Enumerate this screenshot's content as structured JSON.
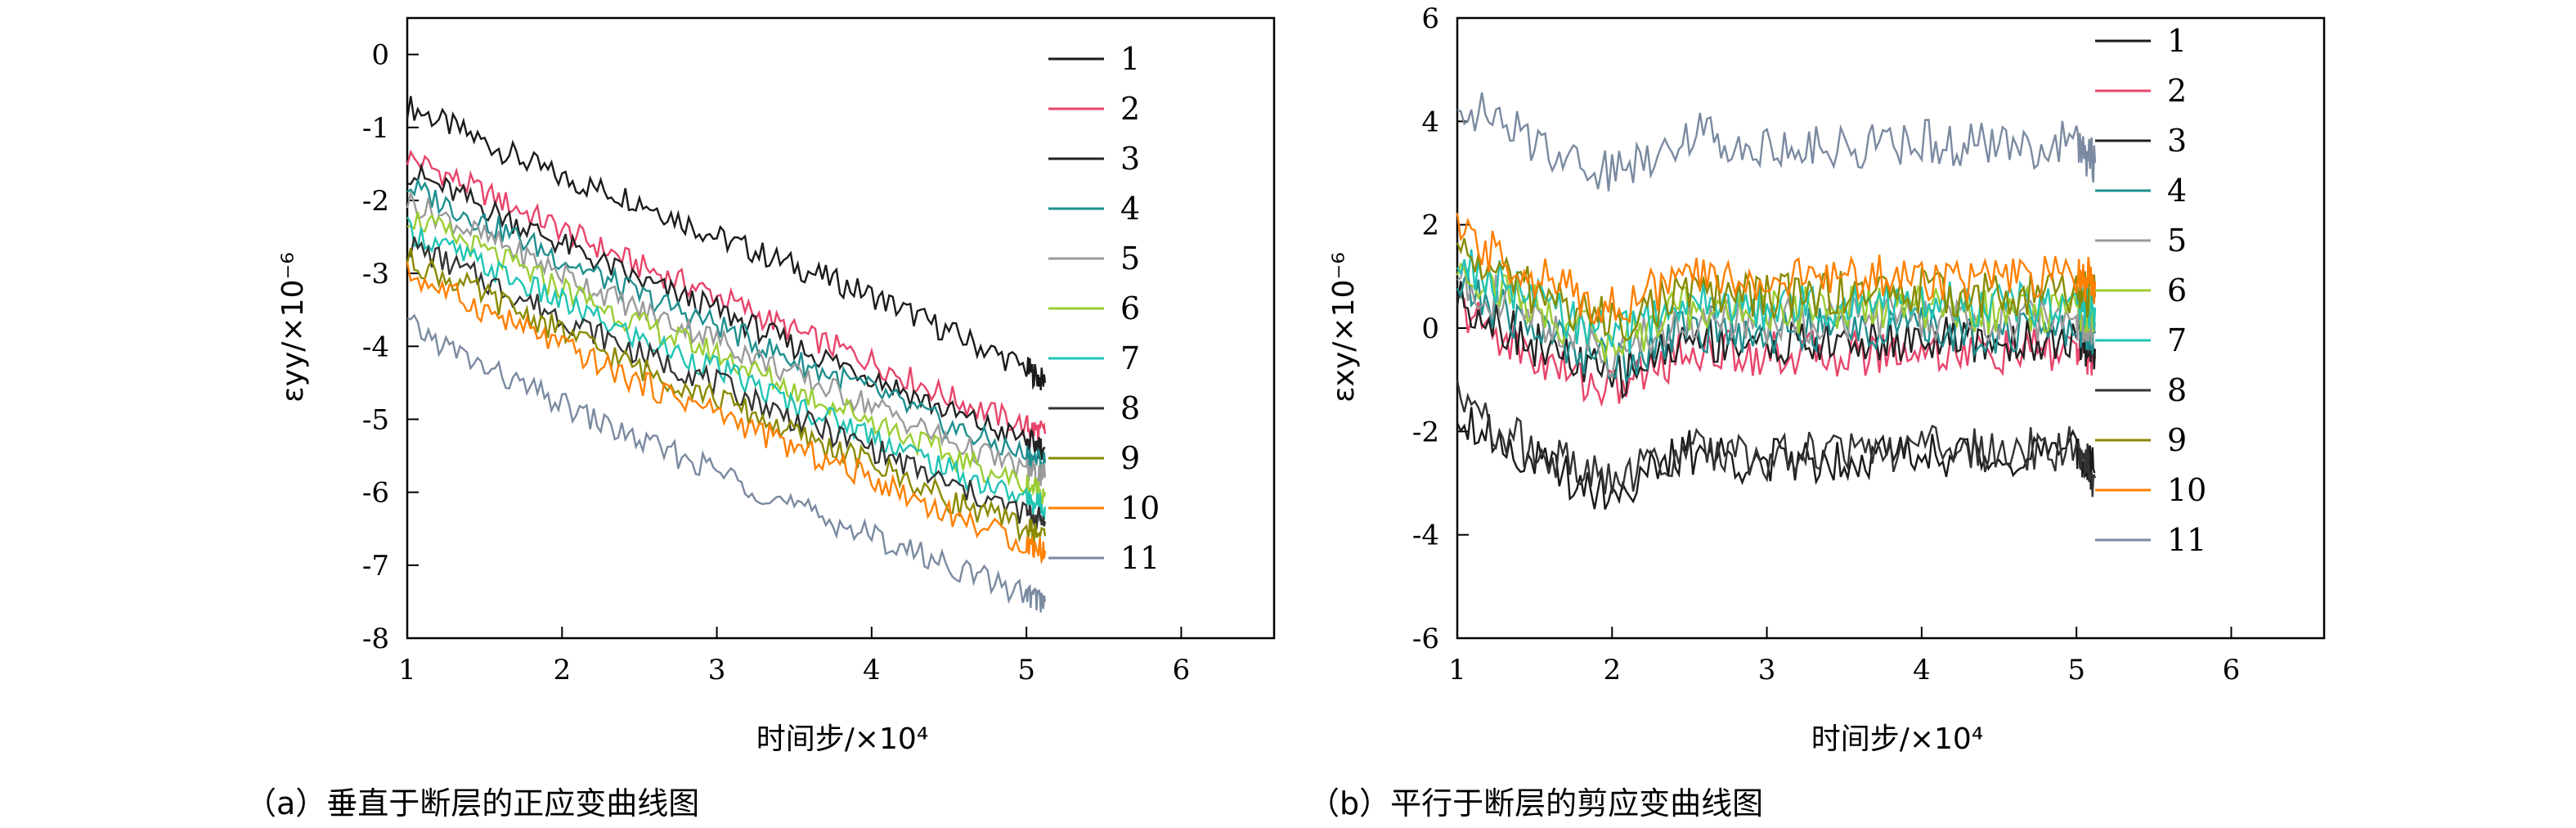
{
  "colors": {
    "axis": "#000000",
    "series": [
      "#1a1a1a",
      "#e8446a",
      "#222222",
      "#1f8f8f",
      "#9a9a9a",
      "#9acd32",
      "#20c4b4",
      "#333333",
      "#8a8a00",
      "#ff7f00",
      "#7a8aa0"
    ]
  },
  "chart_data": [
    {
      "type": "line",
      "panel": "a",
      "caption": "（a）垂直于断层的正应变曲线图",
      "xlabel": "时间步/×10⁴",
      "ylabel": "εyy/×10⁻⁶",
      "xlim": [
        1,
        6.6
      ],
      "ylim": [
        -8,
        0.5
      ],
      "xticks": [
        "1",
        "2",
        "3",
        "4",
        "5",
        "6"
      ],
      "yticks": [
        "0",
        "-1",
        "-2",
        "-3",
        "-4",
        "-5",
        "-6",
        "-7",
        "-8"
      ],
      "legend_position": "top-right",
      "x": [
        1.0,
        1.5,
        2.0,
        2.5,
        3.0,
        3.5,
        4.0,
        4.5,
        5.0,
        5.12
      ],
      "series": [
        {
          "name": "1",
          "values": [
            -0.7,
            -1.2,
            -1.7,
            -2.0,
            -2.5,
            -2.9,
            -3.3,
            -3.8,
            -4.3,
            -4.5
          ]
        },
        {
          "name": "2",
          "values": [
            -1.4,
            -1.9,
            -2.4,
            -2.9,
            -3.3,
            -3.8,
            -4.2,
            -4.7,
            -5.1,
            -5.2
          ]
        },
        {
          "name": "3",
          "values": [
            -1.6,
            -2.1,
            -2.6,
            -3.1,
            -3.5,
            -4.0,
            -4.4,
            -4.9,
            -5.3,
            -5.4
          ]
        },
        {
          "name": "4",
          "values": [
            -1.8,
            -2.3,
            -2.8,
            -3.3,
            -3.7,
            -4.2,
            -4.6,
            -5.1,
            -5.5,
            -5.6
          ]
        },
        {
          "name": "5",
          "values": [
            -2.0,
            -2.5,
            -3.0,
            -3.5,
            -3.9,
            -4.4,
            -4.8,
            -5.3,
            -5.7,
            -5.8
          ]
        },
        {
          "name": "6",
          "values": [
            -2.2,
            -2.7,
            -3.2,
            -3.7,
            -4.1,
            -4.6,
            -5.0,
            -5.5,
            -5.9,
            -6.0
          ]
        },
        {
          "name": "7",
          "values": [
            -2.4,
            -2.9,
            -3.4,
            -3.9,
            -4.3,
            -4.8,
            -5.2,
            -5.7,
            -6.1,
            -6.2
          ]
        },
        {
          "name": "8",
          "values": [
            -2.6,
            -3.1,
            -3.6,
            -4.1,
            -4.5,
            -5.0,
            -5.4,
            -5.9,
            -6.3,
            -6.4
          ]
        },
        {
          "name": "9",
          "values": [
            -2.8,
            -3.3,
            -3.8,
            -4.3,
            -4.7,
            -5.2,
            -5.6,
            -6.1,
            -6.5,
            -6.6
          ]
        },
        {
          "name": "10",
          "values": [
            -3.0,
            -3.5,
            -4.0,
            -4.5,
            -4.9,
            -5.4,
            -5.8,
            -6.3,
            -6.7,
            -6.8
          ]
        },
        {
          "name": "11",
          "values": [
            -3.7,
            -4.3,
            -4.8,
            -5.3,
            -5.7,
            -6.2,
            -6.6,
            -7.0,
            -7.4,
            -7.5
          ]
        }
      ]
    },
    {
      "type": "line",
      "panel": "b",
      "caption": "（b）平行于断层的剪应变曲线图",
      "xlabel": "时间步/×10⁴",
      "ylabel": "εxy/×10⁻⁶",
      "xlim": [
        1,
        6.6
      ],
      "ylim": [
        -6,
        6
      ],
      "xticks": [
        "1",
        "2",
        "3",
        "4",
        "5",
        "6"
      ],
      "yticks": [
        "6",
        "4",
        "2",
        "0",
        "-2",
        "-4",
        "-6"
      ],
      "legend_position": "top-right",
      "x": [
        1.0,
        1.5,
        2.0,
        2.5,
        3.0,
        3.5,
        4.0,
        4.5,
        5.0,
        5.12
      ],
      "series": [
        {
          "name": "1",
          "values": [
            -1.6,
            -2.6,
            -3.2,
            -2.4,
            -2.6,
            -2.5,
            -2.4,
            -2.5,
            -2.4,
            -2.8
          ]
        },
        {
          "name": "2",
          "values": [
            0.4,
            -0.6,
            -1.2,
            -0.4,
            -0.5,
            -0.5,
            -0.4,
            -0.5,
            -0.4,
            -0.6
          ]
        },
        {
          "name": "3",
          "values": [
            0.6,
            -0.3,
            -1.0,
            -0.2,
            -0.3,
            -0.3,
            -0.2,
            -0.3,
            -0.2,
            -0.4
          ]
        },
        {
          "name": "4",
          "values": [
            0.8,
            0.0,
            -0.7,
            0.0,
            -0.1,
            0.0,
            0.0,
            -0.1,
            0.0,
            -0.1
          ]
        },
        {
          "name": "5",
          "values": [
            1.0,
            0.2,
            -0.5,
            0.2,
            0.1,
            0.2,
            0.2,
            0.1,
            0.2,
            0.1
          ]
        },
        {
          "name": "6",
          "values": [
            1.2,
            0.4,
            -0.3,
            0.4,
            0.3,
            0.4,
            0.4,
            0.3,
            0.4,
            0.3
          ]
        },
        {
          "name": "7",
          "values": [
            1.3,
            0.5,
            -0.2,
            0.5,
            0.4,
            0.5,
            0.5,
            0.4,
            0.5,
            0.4
          ]
        },
        {
          "name": "8",
          "values": [
            -1.4,
            -2.4,
            -3.0,
            -2.3,
            -2.5,
            -2.4,
            -2.3,
            -2.4,
            -2.3,
            -2.9
          ]
        },
        {
          "name": "9",
          "values": [
            1.5,
            0.7,
            0.1,
            0.7,
            0.6,
            0.7,
            0.7,
            0.6,
            0.7,
            0.6
          ]
        },
        {
          "name": "10",
          "values": [
            1.8,
            1.0,
            0.4,
            1.0,
            0.9,
            1.0,
            1.0,
            0.9,
            1.0,
            0.9
          ]
        },
        {
          "name": "11",
          "values": [
            4.4,
            3.6,
            3.0,
            3.8,
            3.5,
            3.5,
            3.6,
            3.5,
            3.6,
            3.2
          ]
        }
      ]
    }
  ]
}
